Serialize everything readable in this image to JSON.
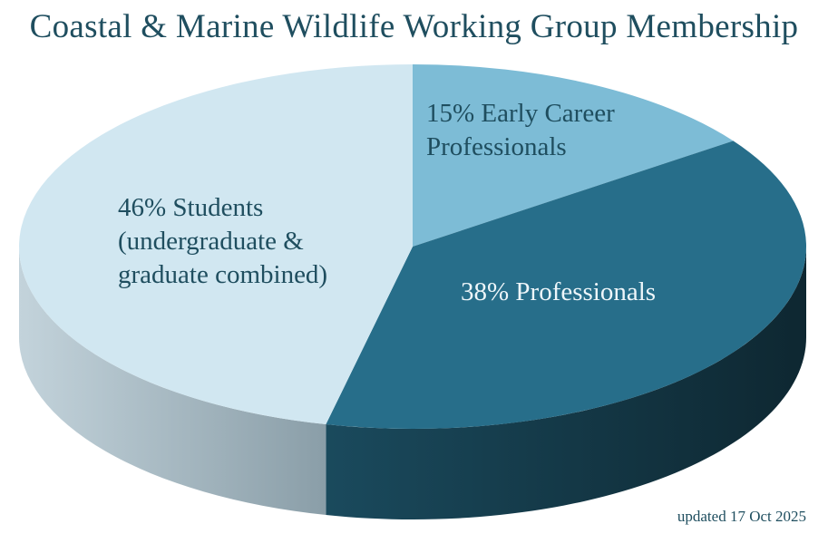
{
  "chart_data": {
    "type": "pie",
    "title": "Coastal & Marine Wildlife Working Group Membership",
    "slices": [
      {
        "label": "Early Career Professionals",
        "value": 15,
        "label_lines": [
          "15% Early Career",
          "Professionals"
        ],
        "color": "#7dbcd6",
        "text_color": "#1f4e5f"
      },
      {
        "label": "Professionals",
        "value": 38,
        "label_lines": [
          "38% Professionals"
        ],
        "color": "#276e8a",
        "text_color": "#eef6fa"
      },
      {
        "label": "Students (undergraduate & graduate combined)",
        "value": 46,
        "label_lines": [
          "46% Students",
          "(undergraduate &",
          "graduate combined)"
        ],
        "color": "#d1e7f1",
        "text_color": "#1f4e5f"
      }
    ],
    "legend": "none",
    "note": "updated 17 Oct 2025"
  },
  "colors": {
    "title": "#1f4e5f",
    "background": "#ffffff"
  }
}
